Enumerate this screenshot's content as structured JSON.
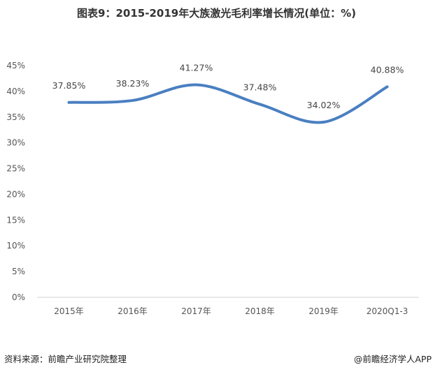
{
  "title": "图表9：2015-2019年大族激光毛利率增长情况(单位：%)",
  "footer": {
    "source": "资料来源：前瞻产业研究院整理",
    "credit": "@前瞻经济学人APP"
  },
  "chart_data": {
    "type": "line",
    "title": "图表9：2015-2019年大族激光毛利率增长情况(单位：%)",
    "categories": [
      "2015年",
      "2016年",
      "2017年",
      "2018年",
      "2019年",
      "2020Q1-3"
    ],
    "series": [
      {
        "values": [
          37.85,
          38.23,
          41.27,
          37.48,
          34.02,
          40.88
        ],
        "labels": [
          "37.85%",
          "38.23%",
          "41.27%",
          "37.48%",
          "34.02%",
          "40.88%"
        ]
      }
    ],
    "ylim": [
      0,
      45
    ],
    "yticks": [
      "0%",
      "5%",
      "10%",
      "15%",
      "20%",
      "25%",
      "30%",
      "35%",
      "40%",
      "45%"
    ],
    "smooth": true,
    "grid": false,
    "line_color": "#4a7fc1"
  }
}
